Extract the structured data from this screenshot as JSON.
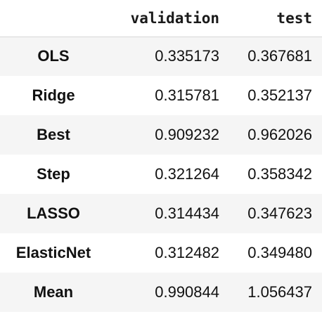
{
  "table": {
    "columns": [
      "validation",
      "test"
    ],
    "rows": [
      {
        "label": "OLS",
        "validation": "0.335173",
        "test": "0.367681"
      },
      {
        "label": "Ridge",
        "validation": "0.315781",
        "test": "0.352137"
      },
      {
        "label": "Best",
        "validation": "0.909232",
        "test": "0.962026"
      },
      {
        "label": "Step",
        "validation": "0.321264",
        "test": "0.358342"
      },
      {
        "label": "LASSO",
        "validation": "0.314434",
        "test": "0.347623"
      },
      {
        "label": "ElasticNet",
        "validation": "0.312482",
        "test": "0.349480"
      },
      {
        "label": "Mean",
        "validation": "0.990844",
        "test": "1.056437"
      }
    ]
  }
}
